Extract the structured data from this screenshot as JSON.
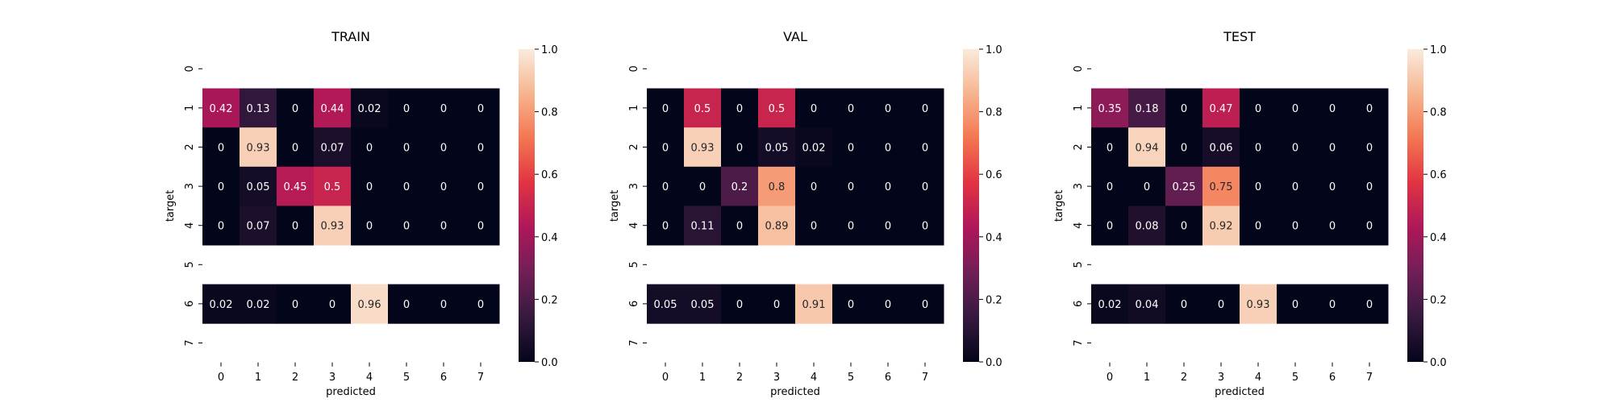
{
  "chart_data": [
    {
      "type": "heatmap",
      "title": "TRAIN",
      "xlabel": "predicted",
      "ylabel": "target",
      "x_tick_labels": [
        "0",
        "1",
        "2",
        "3",
        "4",
        "5",
        "6",
        "7"
      ],
      "y_tick_labels": [
        "0",
        "1",
        "2",
        "3",
        "4",
        "5",
        "6",
        "7"
      ],
      "colorbar": {
        "range": [
          0.0,
          1.0
        ],
        "tick_labels": [
          "0.0",
          "0.2",
          "0.4",
          "0.6",
          "0.8",
          "1.0"
        ]
      },
      "rows": [
        {
          "target": "1",
          "values": [
            0.42,
            0.13,
            0,
            0.44,
            0.02,
            0,
            0,
            0
          ]
        },
        {
          "target": "2",
          "values": [
            0,
            0.93,
            0,
            0.07,
            0,
            0,
            0,
            0
          ]
        },
        {
          "target": "3",
          "values": [
            0,
            0.05,
            0.45,
            0.5,
            0,
            0,
            0,
            0
          ]
        },
        {
          "target": "4",
          "values": [
            0,
            0.07,
            0,
            0.93,
            0,
            0,
            0,
            0
          ]
        },
        {
          "target": "6",
          "values": [
            0.02,
            0.02,
            0,
            0,
            0.96,
            0,
            0,
            0
          ]
        }
      ]
    },
    {
      "type": "heatmap",
      "title": "VAL",
      "xlabel": "predicted",
      "ylabel": "target",
      "x_tick_labels": [
        "0",
        "1",
        "2",
        "3",
        "4",
        "5",
        "6",
        "7"
      ],
      "y_tick_labels": [
        "0",
        "1",
        "2",
        "3",
        "4",
        "5",
        "6",
        "7"
      ],
      "colorbar": {
        "range": [
          0.0,
          1.0
        ],
        "tick_labels": [
          "0.0",
          "0.2",
          "0.4",
          "0.6",
          "0.8",
          "1.0"
        ]
      },
      "rows": [
        {
          "target": "1",
          "values": [
            0,
            0.5,
            0,
            0.5,
            0,
            0,
            0,
            0
          ]
        },
        {
          "target": "2",
          "values": [
            0,
            0.93,
            0,
            0.05,
            0.02,
            0,
            0,
            0
          ]
        },
        {
          "target": "3",
          "values": [
            0,
            0,
            0.2,
            0.8,
            0,
            0,
            0,
            0
          ]
        },
        {
          "target": "4",
          "values": [
            0,
            0.11,
            0,
            0.89,
            0,
            0,
            0,
            0
          ]
        },
        {
          "target": "6",
          "values": [
            0.05,
            0.05,
            0,
            0,
            0.91,
            0,
            0,
            0
          ]
        }
      ]
    },
    {
      "type": "heatmap",
      "title": "TEST",
      "xlabel": "predicted",
      "ylabel": "target",
      "x_tick_labels": [
        "0",
        "1",
        "2",
        "3",
        "4",
        "5",
        "6",
        "7"
      ],
      "y_tick_labels": [
        "0",
        "1",
        "2",
        "3",
        "4",
        "5",
        "6",
        "7"
      ],
      "colorbar": {
        "range": [
          0.0,
          1.0
        ],
        "tick_labels": [
          "0.0",
          "0.2",
          "0.4",
          "0.6",
          "0.8",
          "1.0"
        ]
      },
      "rows": [
        {
          "target": "1",
          "values": [
            0.35,
            0.18,
            0,
            0.47,
            0,
            0,
            0,
            0
          ]
        },
        {
          "target": "2",
          "values": [
            0,
            0.94,
            0,
            0.06,
            0,
            0,
            0,
            0
          ]
        },
        {
          "target": "3",
          "values": [
            0,
            0,
            0.25,
            0.75,
            0,
            0,
            0,
            0
          ]
        },
        {
          "target": "4",
          "values": [
            0,
            0.08,
            0,
            0.92,
            0,
            0,
            0,
            0
          ]
        },
        {
          "target": "6",
          "values": [
            0.02,
            0.04,
            0,
            0,
            0.93,
            0,
            0,
            0
          ]
        }
      ]
    }
  ],
  "colormap": {
    "name": "rocket",
    "stops": [
      "#03051a",
      "#36193e",
      "#701f57",
      "#ae1759",
      "#e13342",
      "#f37651",
      "#f6b48f",
      "#faebdd"
    ]
  }
}
